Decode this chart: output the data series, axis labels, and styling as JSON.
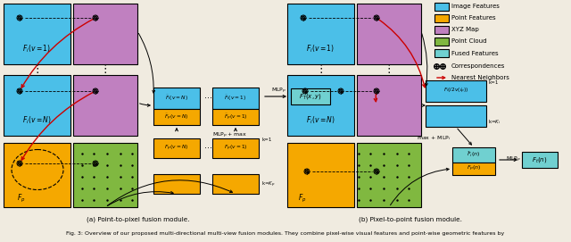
{
  "title": "Fig. 3: Overview of our proposed multi-directional multi-view fusion modules. They combine pixel-wise visual features and point-wise geometric features by",
  "subtitle_a": "(a) Point-to-pixel fusion module.",
  "subtitle_b": "(b) Pixel-to-point fusion module.",
  "colors": {
    "blue": "#4BBFE8",
    "orange": "#F5A800",
    "purple": "#C080C0",
    "green": "#80B840",
    "cyan": "#70D0D0",
    "bg": "#F0EBE0",
    "black": "#000000",
    "white": "#FFFFFF",
    "red": "#CC0000"
  },
  "legend": {
    "items": [
      "Image Features",
      "Point Features",
      "XYZ Map",
      "Point Cloud",
      "Fused Features"
    ],
    "colors": [
      "#4BBFE8",
      "#F5A800",
      "#C080C0",
      "#80B840",
      "#70D0D0"
    ]
  }
}
